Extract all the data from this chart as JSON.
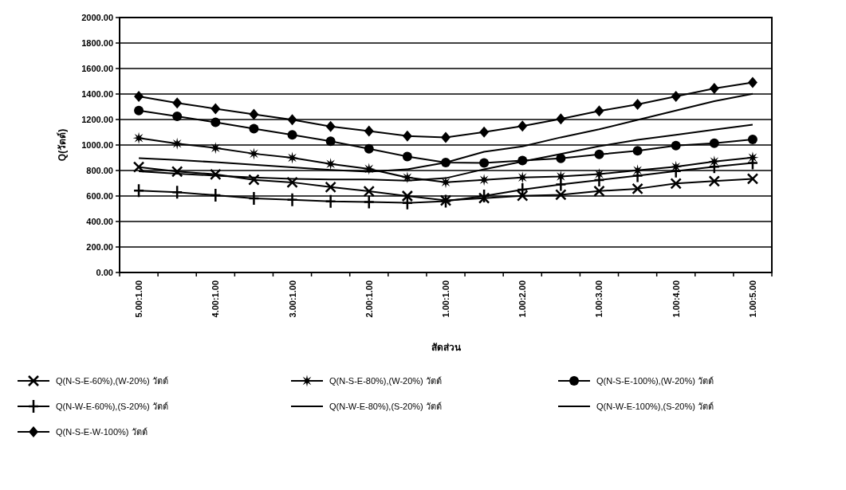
{
  "chart_data": {
    "type": "line",
    "xlabel": "สัดส่วน",
    "ylabel": "Q(วัตต์)",
    "categories": [
      "5.00:1.00",
      null,
      "4.00:1.00",
      null,
      "3.00:1.00",
      null,
      "2.00:1.00",
      null,
      "1.00:1.00",
      null,
      "1.00:2.00",
      null,
      "1.00:3.00",
      null,
      "1.00:4.00",
      null,
      "1.00:5.00"
    ],
    "ylim": [
      0,
      2000
    ],
    "yticks": [
      {
        "value": 0,
        "label": "0.00"
      },
      {
        "value": 200,
        "label": "200.00"
      },
      {
        "value": 400,
        "label": "400.00"
      },
      {
        "value": 600,
        "label": "600.00"
      },
      {
        "value": 800,
        "label": "800.00"
      },
      {
        "value": 1000,
        "label": "1000.00"
      },
      {
        "value": 1200,
        "label": "1200.00"
      },
      {
        "value": 1400,
        "label": "1400.00"
      },
      {
        "value": 1600,
        "label": "1600.00"
      },
      {
        "value": 1800,
        "label": "1800.00"
      },
      {
        "value": 2000,
        "label": "2000.00"
      }
    ],
    "grid": "y",
    "legend": "bottom",
    "series": [
      {
        "name": "Q(N-S-E-60%),(W-20%) วัตต์",
        "color": "#000000",
        "marker": "cross",
        "values": [
          827,
          792,
          770,
          727,
          707,
          670,
          637,
          600,
          565,
          583,
          602,
          610,
          639,
          657,
          698,
          717,
          735
        ]
      },
      {
        "name": "Q(N-S-E-80%),(W-20%) วัตต์",
        "color": "#000000",
        "marker": "star",
        "values": [
          1055,
          1011,
          977,
          932,
          900,
          852,
          813,
          745,
          708,
          727,
          746,
          753,
          772,
          801,
          830,
          871,
          901
        ]
      },
      {
        "name": "Q(N-S-E-100%),(W-20%) วัตต์",
        "color": "#000000",
        "marker": "circle",
        "values": [
          1270,
          1225,
          1178,
          1128,
          1080,
          1030,
          970,
          910,
          862,
          859,
          878,
          896,
          926,
          955,
          996,
          1014,
          1044
        ]
      },
      {
        "name": "Q(N-W-E-60%),(S-20%) วัตต์",
        "color": "#000000",
        "marker": "plus",
        "values": [
          642,
          630,
          606,
          582,
          570,
          558,
          553,
          546,
          560,
          600,
          650,
          690,
          725,
          760,
          795,
          830,
          860
        ]
      },
      {
        "name": "Q(N-W-E-80%),(S-20%) วัตต์",
        "color": "#000000",
        "marker": "none",
        "values": [
          793,
          775,
          760,
          745,
          735,
          730,
          730,
          720,
          740,
          810,
          870,
          930,
          990,
          1040,
          1080,
          1120,
          1159
        ]
      },
      {
        "name": "Q(N-W-E-100%),(S-20%) วัตต์",
        "color": "#000000",
        "marker": "none",
        "values": [
          897,
          883,
          865,
          845,
          825,
          805,
          790,
          810,
          862,
          947,
          989,
          1060,
          1123,
          1197,
          1270,
          1344,
          1401
        ]
      },
      {
        "name": "Q(N-S-E-W-100%) วัตต์",
        "color": "#000000",
        "marker": "diamond",
        "values": [
          1381,
          1329,
          1285,
          1241,
          1198,
          1145,
          1109,
          1071,
          1060,
          1101,
          1149,
          1205,
          1267,
          1319,
          1381,
          1444,
          1491
        ]
      }
    ]
  }
}
